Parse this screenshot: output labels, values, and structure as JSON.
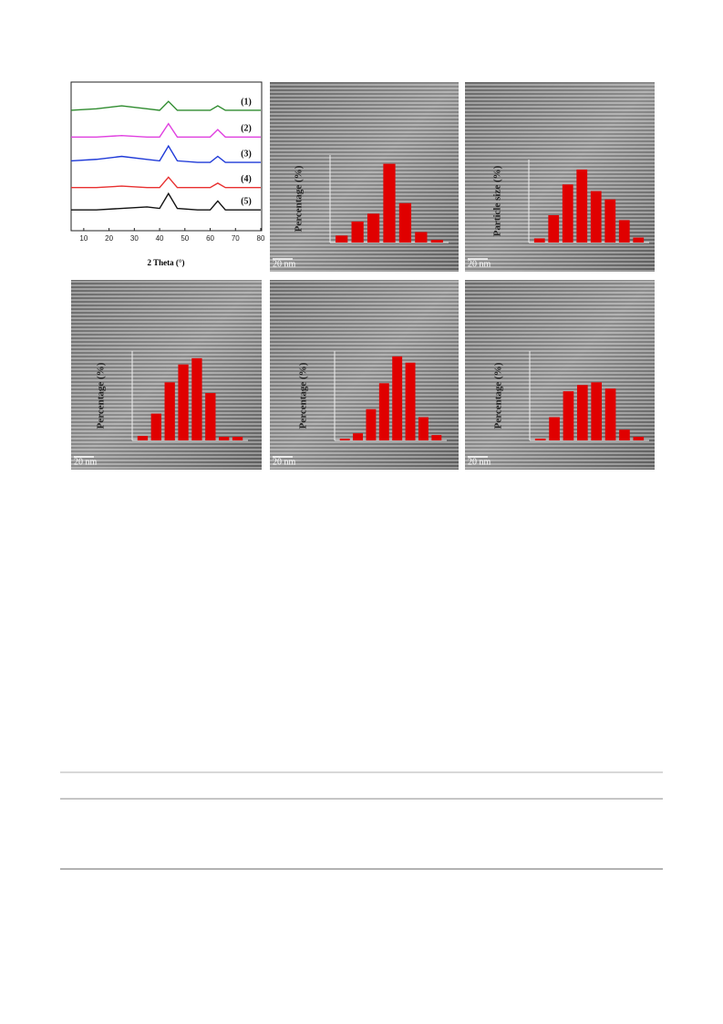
{
  "figure": {
    "xrd": {
      "type": "line",
      "x_label": "2 Theta (°)",
      "xlim": [
        5,
        80
      ],
      "xticks": [
        10,
        20,
        30,
        40,
        50,
        60,
        70,
        80
      ],
      "ylim": [
        0,
        100
      ],
      "x": [
        5,
        15,
        25,
        35,
        40,
        43.5,
        47,
        55,
        60,
        63,
        66,
        72,
        80
      ],
      "series": [
        {
          "name": "(1)",
          "color": "#2e8b2e",
          "values": [
            81,
            82,
            84,
            82,
            81,
            87,
            81,
            81,
            81,
            84,
            81,
            81,
            81
          ]
        },
        {
          "name": "(2)",
          "color": "#e040e0",
          "values": [
            63,
            63,
            64,
            63,
            63,
            72,
            63,
            63,
            63,
            68,
            63,
            63,
            63
          ]
        },
        {
          "name": "(3)",
          "color": "#1f3ad8",
          "values": [
            47,
            48,
            50,
            48,
            47,
            57,
            47,
            46,
            46,
            50,
            46,
            46,
            46
          ]
        },
        {
          "name": "(4)",
          "color": "#e83030",
          "values": [
            29,
            29,
            30,
            29,
            29,
            36,
            29,
            29,
            29,
            32,
            29,
            29,
            29
          ]
        },
        {
          "name": "(5)",
          "color": "#111111",
          "values": [
            14,
            14,
            15,
            16,
            15,
            25,
            15,
            14,
            14,
            20,
            14,
            14,
            14
          ]
        }
      ]
    },
    "panels": [
      {
        "type": "bar",
        "y_label": "Percentage (%)",
        "scale_bar": "20 nm",
        "color": "#e00000",
        "ylim": [
          0,
          100
        ],
        "values": [
          8,
          24,
          33,
          90,
          45,
          12,
          3
        ]
      },
      {
        "type": "bar",
        "y_label": "Particle size (%)",
        "scale_bar": "20 nm",
        "color": "#e00000",
        "ylim": [
          0,
          100
        ],
        "values": [
          5,
          33,
          70,
          88,
          62,
          52,
          27,
          6
        ]
      },
      {
        "type": "bar",
        "y_label": "Percentage (%)",
        "scale_bar": "20 nm",
        "color": "#e00000",
        "ylim": [
          0,
          100
        ],
        "values": [
          5,
          30,
          65,
          85,
          92,
          53,
          4,
          4
        ]
      },
      {
        "type": "bar",
        "y_label": "Percentage (%)",
        "scale_bar": "20 nm",
        "color": "#e00000",
        "ylim": [
          0,
          100
        ],
        "values": [
          2,
          8,
          35,
          64,
          94,
          87,
          26,
          6
        ]
      },
      {
        "type": "bar",
        "y_label": "Percentage (%)",
        "scale_bar": "20 nm",
        "color": "#e00000",
        "ylim": [
          0,
          100
        ],
        "values": [
          2,
          26,
          55,
          62,
          65,
          58,
          12,
          4
        ]
      }
    ]
  }
}
